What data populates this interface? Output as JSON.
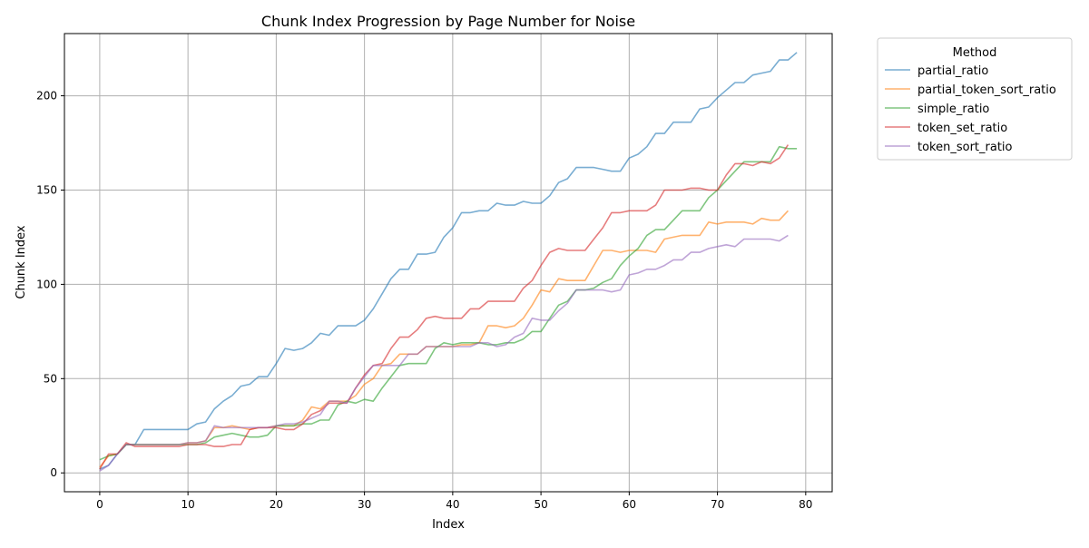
{
  "chart_data": {
    "type": "line",
    "title": "Chunk Index Progression by Page Number for Noise",
    "xlabel": "Index",
    "ylabel": "Chunk Index",
    "xlim": [
      -4,
      83
    ],
    "ylim": [
      -10,
      233
    ],
    "xticks": [
      0,
      10,
      20,
      30,
      40,
      50,
      60,
      70,
      80
    ],
    "yticks": [
      0,
      50,
      100,
      150,
      200
    ],
    "grid": true,
    "legend": {
      "title": "Method",
      "placement": "outside-top-right"
    },
    "series": [
      {
        "name": "partial_ratio",
        "color": "#1f77b4",
        "x": [
          0,
          1,
          2,
          3,
          4,
          5,
          6,
          7,
          8,
          9,
          10,
          11,
          12,
          13,
          14,
          15,
          16,
          17,
          18,
          19,
          20,
          21,
          22,
          23,
          24,
          25,
          26,
          27,
          28,
          29,
          30,
          31,
          32,
          33,
          34,
          35,
          36,
          37,
          38,
          39,
          40,
          41,
          42,
          43,
          44,
          45,
          46,
          47,
          48,
          49,
          50,
          51,
          52,
          53,
          54,
          55,
          56,
          57,
          58,
          59,
          60,
          61,
          62,
          63,
          64,
          65,
          66,
          67,
          68,
          69,
          70,
          71,
          72,
          73,
          74,
          75,
          76,
          77,
          78,
          79
        ],
        "values": [
          2,
          4,
          10,
          15,
          15,
          23,
          23,
          23,
          23,
          23,
          23,
          26,
          27,
          34,
          38,
          41,
          46,
          47,
          51,
          51,
          58,
          66,
          65,
          66,
          69,
          74,
          73,
          78,
          78,
          78,
          81,
          87,
          95,
          103,
          108,
          108,
          116,
          116,
          117,
          125,
          130,
          138,
          138,
          139,
          139,
          143,
          142,
          142,
          144,
          143,
          143,
          147,
          154,
          156,
          162,
          162,
          162,
          161,
          160,
          160,
          167,
          169,
          173,
          180,
          180,
          186,
          186,
          186,
          193,
          194,
          199,
          203,
          207,
          207,
          211,
          212,
          213,
          219,
          219,
          223
        ]
      },
      {
        "name": "partial_token_sort_ratio",
        "color": "#ff7f0e",
        "x": [
          0,
          1,
          2,
          3,
          4,
          5,
          6,
          7,
          8,
          9,
          10,
          11,
          12,
          13,
          14,
          15,
          16,
          17,
          18,
          19,
          20,
          21,
          22,
          23,
          24,
          25,
          26,
          27,
          28,
          29,
          30,
          31,
          32,
          33,
          34,
          35,
          36,
          37,
          38,
          39,
          40,
          41,
          42,
          43,
          44,
          45,
          46,
          47,
          48,
          49,
          50,
          51,
          52,
          53,
          54,
          55,
          56,
          57,
          58,
          59,
          60,
          61,
          62,
          63,
          64,
          65,
          66,
          67,
          68,
          69,
          70,
          71,
          72,
          73,
          74,
          75,
          76,
          77,
          78
        ],
        "values": [
          3,
          9,
          10,
          15,
          15,
          15,
          15,
          15,
          15,
          15,
          16,
          16,
          17,
          24,
          24,
          25,
          24,
          23,
          24,
          24,
          25,
          25,
          25,
          28,
          35,
          34,
          38,
          38,
          38,
          41,
          47,
          50,
          57,
          58,
          63,
          63,
          63,
          67,
          67,
          67,
          67,
          68,
          68,
          69,
          78,
          78,
          77,
          78,
          82,
          89,
          97,
          96,
          103,
          102,
          102,
          102,
          110,
          118,
          118,
          117,
          118,
          118,
          118,
          117,
          124,
          125,
          126,
          126,
          126,
          133,
          132,
          133,
          133,
          133,
          132,
          135,
          134,
          134,
          139
        ]
      },
      {
        "name": "simple_ratio",
        "color": "#2ca02c",
        "x": [
          0,
          1,
          2,
          3,
          4,
          5,
          6,
          7,
          8,
          9,
          10,
          11,
          12,
          13,
          14,
          15,
          16,
          17,
          18,
          19,
          20,
          21,
          22,
          23,
          24,
          25,
          26,
          27,
          28,
          29,
          30,
          31,
          32,
          33,
          34,
          35,
          36,
          37,
          38,
          39,
          40,
          41,
          42,
          43,
          44,
          45,
          46,
          47,
          48,
          49,
          50,
          51,
          52,
          53,
          54,
          55,
          56,
          57,
          58,
          59,
          60,
          61,
          62,
          63,
          64,
          65,
          66,
          67,
          68,
          69,
          70,
          71,
          72,
          73,
          74,
          75,
          76,
          77,
          78,
          79
        ],
        "values": [
          7,
          9,
          10,
          15,
          15,
          15,
          15,
          15,
          15,
          15,
          15,
          15,
          16,
          19,
          20,
          21,
          20,
          19,
          19,
          20,
          25,
          25,
          25,
          26,
          26,
          28,
          28,
          36,
          38,
          37,
          39,
          38,
          45,
          51,
          57,
          58,
          58,
          58,
          66,
          69,
          68,
          69,
          69,
          69,
          68,
          68,
          69,
          69,
          71,
          75,
          75,
          82,
          89,
          91,
          97,
          97,
          98,
          101,
          103,
          110,
          115,
          119,
          126,
          129,
          129,
          134,
          139,
          139,
          139,
          146,
          150,
          155,
          160,
          165,
          165,
          165,
          165,
          173,
          172,
          172
        ]
      },
      {
        "name": "token_set_ratio",
        "color": "#d62728",
        "x": [
          0,
          1,
          2,
          3,
          4,
          5,
          6,
          7,
          8,
          9,
          10,
          11,
          12,
          13,
          14,
          15,
          16,
          17,
          18,
          19,
          20,
          21,
          22,
          23,
          24,
          25,
          26,
          27,
          28,
          29,
          30,
          31,
          32,
          33,
          34,
          35,
          36,
          37,
          38,
          39,
          40,
          41,
          42,
          43,
          44,
          45,
          46,
          47,
          48,
          49,
          50,
          51,
          52,
          53,
          54,
          55,
          56,
          57,
          58,
          59,
          60,
          61,
          62,
          63,
          64,
          65,
          66,
          67,
          68,
          69,
          70,
          71,
          72,
          73,
          74,
          75,
          76,
          77,
          78
        ],
        "values": [
          2,
          10,
          10,
          16,
          14,
          14,
          14,
          14,
          14,
          14,
          15,
          15,
          15,
          14,
          14,
          15,
          15,
          23,
          24,
          24,
          24,
          23,
          23,
          26,
          31,
          33,
          37,
          37,
          37,
          45,
          52,
          57,
          58,
          66,
          72,
          72,
          76,
          82,
          83,
          82,
          82,
          82,
          87,
          87,
          91,
          91,
          91,
          91,
          98,
          102,
          110,
          117,
          119,
          118,
          118,
          118,
          124,
          130,
          138,
          138,
          139,
          139,
          139,
          142,
          150,
          150,
          150,
          151,
          151,
          150,
          150,
          158,
          164,
          164,
          163,
          165,
          164,
          167,
          174
        ]
      },
      {
        "name": "token_sort_ratio",
        "color": "#9467bd",
        "x": [
          0,
          1,
          2,
          3,
          4,
          5,
          6,
          7,
          8,
          9,
          10,
          11,
          12,
          13,
          14,
          15,
          16,
          17,
          18,
          19,
          20,
          21,
          22,
          23,
          24,
          25,
          26,
          27,
          28,
          29,
          30,
          31,
          32,
          33,
          34,
          35,
          36,
          37,
          38,
          39,
          40,
          41,
          42,
          43,
          44,
          45,
          46,
          47,
          48,
          49,
          50,
          51,
          52,
          53,
          54,
          55,
          56,
          57,
          58,
          59,
          60,
          61,
          62,
          63,
          64,
          65,
          66,
          67,
          68,
          69,
          70,
          71,
          72,
          73,
          74,
          75,
          76,
          77,
          78
        ],
        "values": [
          1,
          4,
          10,
          15,
          15,
          15,
          15,
          15,
          15,
          15,
          16,
          16,
          17,
          25,
          24,
          24,
          24,
          24,
          24,
          24,
          25,
          26,
          26,
          27,
          29,
          31,
          38,
          38,
          37,
          45,
          51,
          57,
          57,
          57,
          57,
          63,
          63,
          67,
          67,
          67,
          67,
          67,
          67,
          69,
          69,
          67,
          68,
          72,
          74,
          82,
          81,
          81,
          86,
          90,
          97,
          97,
          97,
          97,
          96,
          97,
          105,
          106,
          108,
          108,
          110,
          113,
          113,
          117,
          117,
          119,
          120,
          121,
          120,
          124,
          124,
          124,
          124,
          123,
          126
        ]
      }
    ]
  }
}
